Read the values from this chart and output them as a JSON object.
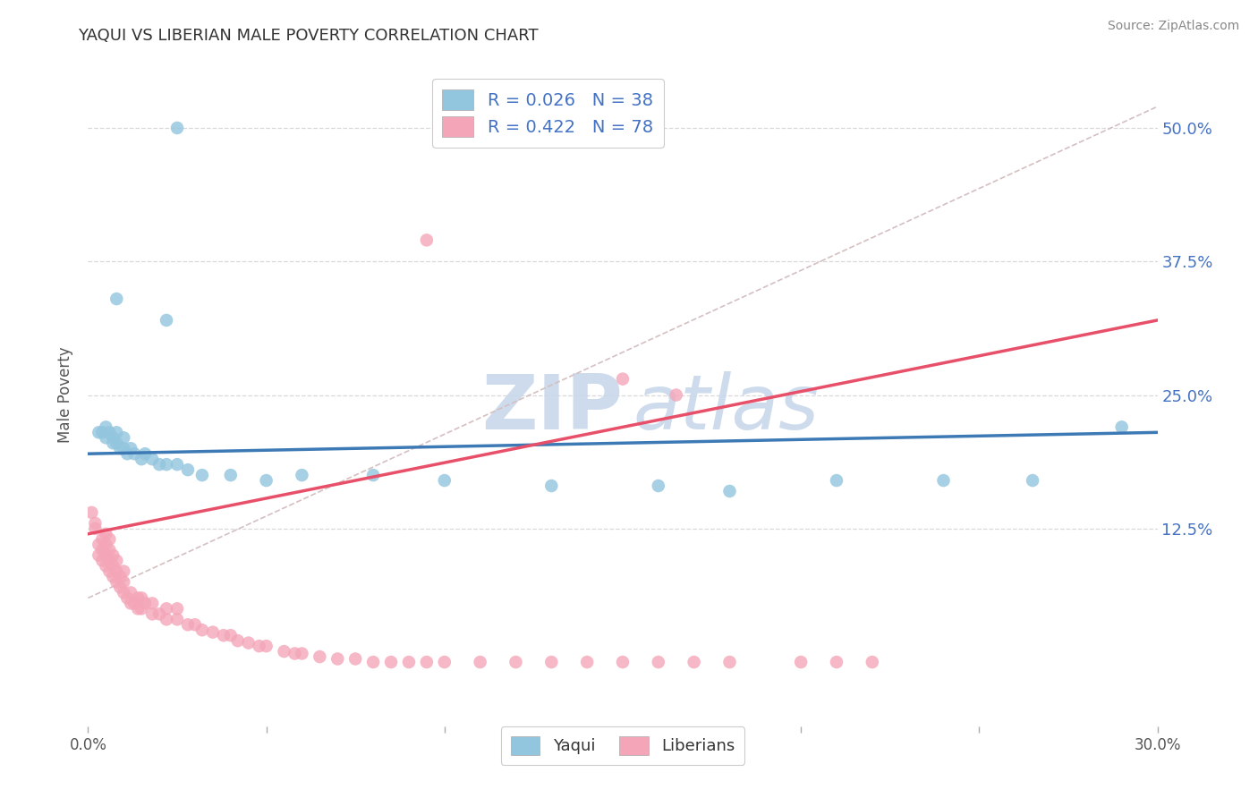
{
  "title": "YAQUI VS LIBERIAN MALE POVERTY CORRELATION CHART",
  "source": "Source: ZipAtlas.com",
  "ylabel": "Male Poverty",
  "yaxis_labels": [
    "12.5%",
    "25.0%",
    "37.5%",
    "50.0%"
  ],
  "yaxis_values": [
    0.125,
    0.25,
    0.375,
    0.5
  ],
  "xmin": 0.0,
  "xmax": 0.3,
  "ymin": -0.06,
  "ymax": 0.56,
  "legend_label1": "Yaqui",
  "legend_label2": "Liberians",
  "yaqui_color": "#92c5de",
  "liberian_color": "#f4a6b8",
  "yaqui_trend_color": "#3d7ab5",
  "liberian_trend_color": "#e8506a",
  "diagonal_color": "#d4c0c0",
  "background_color": "#ffffff",
  "watermark_color": "#c8d8ea",
  "grid_color": "#d8d8d8",
  "yaqui_x": [
    0.025,
    0.008,
    0.022,
    0.003,
    0.004,
    0.005,
    0.005,
    0.006,
    0.007,
    0.007,
    0.008,
    0.008,
    0.009,
    0.01,
    0.01,
    0.011,
    0.012,
    0.013,
    0.015,
    0.016,
    0.018,
    0.02,
    0.022,
    0.025,
    0.028,
    0.032,
    0.04,
    0.05,
    0.06,
    0.08,
    0.1,
    0.13,
    0.16,
    0.18,
    0.21,
    0.24,
    0.265,
    0.29
  ],
  "yaqui_y": [
    0.5,
    0.34,
    0.32,
    0.215,
    0.215,
    0.22,
    0.21,
    0.215,
    0.21,
    0.205,
    0.215,
    0.205,
    0.2,
    0.21,
    0.2,
    0.195,
    0.2,
    0.195,
    0.19,
    0.195,
    0.19,
    0.185,
    0.185,
    0.185,
    0.18,
    0.175,
    0.175,
    0.17,
    0.175,
    0.175,
    0.17,
    0.165,
    0.165,
    0.16,
    0.17,
    0.17,
    0.17,
    0.22
  ],
  "liberian_x": [
    0.001,
    0.002,
    0.002,
    0.003,
    0.003,
    0.004,
    0.004,
    0.004,
    0.005,
    0.005,
    0.005,
    0.005,
    0.006,
    0.006,
    0.006,
    0.006,
    0.007,
    0.007,
    0.007,
    0.008,
    0.008,
    0.008,
    0.009,
    0.009,
    0.01,
    0.01,
    0.01,
    0.011,
    0.012,
    0.012,
    0.013,
    0.014,
    0.014,
    0.015,
    0.015,
    0.016,
    0.018,
    0.018,
    0.02,
    0.022,
    0.022,
    0.025,
    0.025,
    0.028,
    0.03,
    0.032,
    0.035,
    0.038,
    0.04,
    0.042,
    0.045,
    0.048,
    0.05,
    0.055,
    0.058,
    0.06,
    0.065,
    0.07,
    0.075,
    0.08,
    0.085,
    0.09,
    0.095,
    0.1,
    0.11,
    0.12,
    0.13,
    0.14,
    0.15,
    0.16,
    0.17,
    0.18,
    0.2,
    0.21,
    0.22,
    0.095,
    0.15,
    0.165
  ],
  "liberian_y": [
    0.14,
    0.125,
    0.13,
    0.1,
    0.11,
    0.095,
    0.105,
    0.115,
    0.09,
    0.1,
    0.11,
    0.12,
    0.085,
    0.095,
    0.105,
    0.115,
    0.08,
    0.09,
    0.1,
    0.075,
    0.085,
    0.095,
    0.07,
    0.08,
    0.065,
    0.075,
    0.085,
    0.06,
    0.055,
    0.065,
    0.055,
    0.05,
    0.06,
    0.05,
    0.06,
    0.055,
    0.045,
    0.055,
    0.045,
    0.04,
    0.05,
    0.04,
    0.05,
    0.035,
    0.035,
    0.03,
    0.028,
    0.025,
    0.025,
    0.02,
    0.018,
    0.015,
    0.015,
    0.01,
    0.008,
    0.008,
    0.005,
    0.003,
    0.003,
    0.0,
    0.0,
    0.0,
    0.0,
    0.0,
    0.0,
    0.0,
    0.0,
    0.0,
    0.0,
    0.0,
    0.0,
    0.0,
    0.0,
    0.0,
    0.0,
    0.395,
    0.265,
    0.25
  ]
}
